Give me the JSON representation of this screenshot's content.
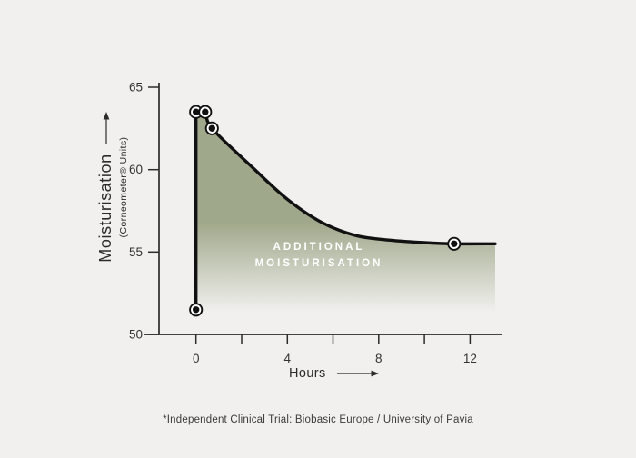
{
  "chart": {
    "y_axis": {
      "label": "Moisturisation",
      "sublabel": "(Corneometer® Units)",
      "ticks": [
        65,
        60,
        55,
        50
      ]
    },
    "x_axis": {
      "label": "Hours",
      "ticks": [
        0,
        2,
        4,
        6,
        8,
        10,
        12
      ],
      "labeled_ticks": [
        0,
        4,
        8,
        12
      ]
    },
    "area_label_line1": "ADDITIONAL",
    "area_label_line2": "MOISTURISATION",
    "footnote": "*Independent Clinical Trial: Biobasic Europe / University of Pavia",
    "colors": {
      "background": "#f1f0ee",
      "area_fill": "#a0a88b",
      "line": "#111111",
      "axis": "#2b2b2b",
      "tick_text": "#333333",
      "area_label_text": "#ffffff"
    }
  },
  "chart_data": {
    "type": "area",
    "title": "",
    "xlabel": "Hours",
    "ylabel": "Moisturisation (Corneometer® Units)",
    "xlim": [
      -2.3,
      13.5
    ],
    "ylim": [
      50,
      65
    ],
    "x_ticks": [
      0,
      2,
      4,
      6,
      8,
      10,
      12
    ],
    "x_labeled_ticks": [
      0,
      4,
      8,
      12
    ],
    "y_ticks": [
      65,
      60,
      55,
      50
    ],
    "grid": false,
    "legend": "none",
    "annotation": "ADDITIONAL MOISTURISATION",
    "pre_application_point": [
      0,
      51.5
    ],
    "vertical_jump": {
      "x": 0,
      "from": 51.5,
      "to": 63.5
    },
    "marker_points": [
      [
        0,
        63.5
      ],
      [
        0.4,
        63.5
      ],
      [
        0.7,
        62.5
      ],
      [
        11.3,
        55.5
      ]
    ],
    "curve_points": [
      [
        0,
        63.5
      ],
      [
        0.4,
        63.5
      ],
      [
        0.7,
        62.5
      ],
      [
        2.5,
        60.1
      ],
      [
        4,
        58.2
      ],
      [
        5.5,
        56.8
      ],
      [
        7,
        56.0
      ],
      [
        8.5,
        55.72
      ],
      [
        10,
        55.57
      ],
      [
        11.3,
        55.5
      ],
      [
        13.1,
        55.5
      ]
    ]
  }
}
